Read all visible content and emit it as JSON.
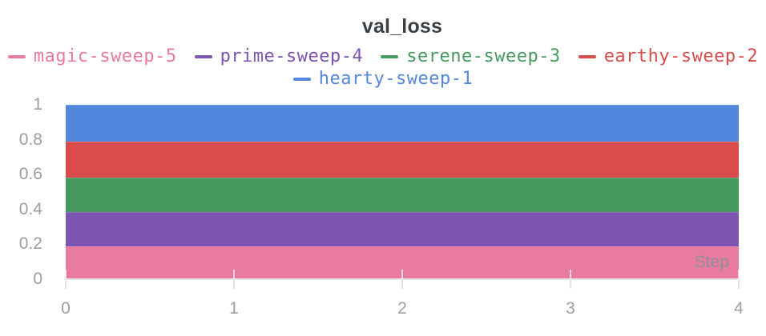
{
  "title": "val_loss",
  "legend": {
    "rows": [
      [
        {
          "label": "magic-sweep-5",
          "color": "#e87b9f"
        },
        {
          "label": "prime-sweep-4",
          "color": "#7d54b2"
        },
        {
          "label": "serene-sweep-3",
          "color": "#479a5f"
        },
        {
          "label": "earthy-sweep-2",
          "color": "#da4c4c"
        }
      ],
      [
        {
          "label": "hearty-sweep-1",
          "color": "#5387dd"
        }
      ]
    ]
  },
  "axes": {
    "y_tick_labels": [
      "1",
      "0.8",
      "0.6",
      "0.4",
      "0.2",
      "0"
    ],
    "y_tick_values": [
      1,
      0.8,
      0.6,
      0.4,
      0.2,
      0
    ],
    "x_tick_labels": [
      "0",
      "1",
      "2",
      "3",
      "4"
    ],
    "x_tick_values": [
      0,
      1,
      2,
      3,
      4
    ],
    "xlabel": "Step"
  },
  "chart_data": {
    "type": "area",
    "title": "val_loss",
    "xlabel": "Step",
    "ylabel": "",
    "xlim": [
      0,
      4
    ],
    "ylim": [
      0,
      1
    ],
    "x": [
      0,
      1,
      2,
      3,
      4
    ],
    "grid": false,
    "legend_position": "top",
    "note": "Five constant horizontal bands stacked from 0 to 1 across steps 0-4",
    "series": [
      {
        "name": "hearty-sweep-1",
        "color": "#5387dd",
        "band": [
          0.789,
          1.0
        ]
      },
      {
        "name": "earthy-sweep-2",
        "color": "#da4c4c",
        "band": [
          0.583,
          0.789
        ]
      },
      {
        "name": "serene-sweep-3",
        "color": "#479a5f",
        "band": [
          0.385,
          0.583
        ]
      },
      {
        "name": "prime-sweep-4",
        "color": "#7d54b2",
        "band": [
          0.188,
          0.385
        ]
      },
      {
        "name": "magic-sweep-5",
        "color": "#e87b9f",
        "band": [
          0.0,
          0.188
        ]
      }
    ]
  },
  "colors": {
    "title_text": "#3a3f46",
    "axis_text": "#9a9ea4",
    "step_text": "#8d9198",
    "baseline": "#e8e8e8",
    "tick": "#e2e2e7",
    "background": "#ffffff"
  }
}
